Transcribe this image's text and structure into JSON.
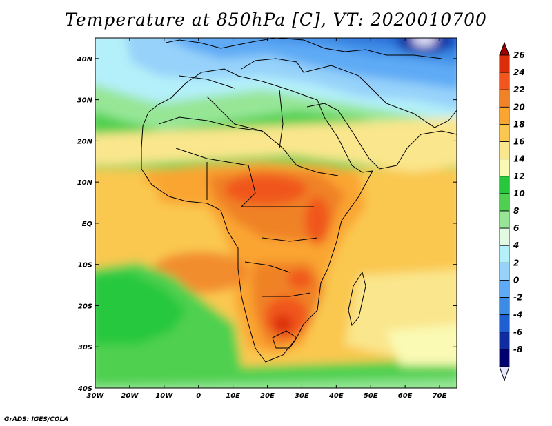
{
  "title": "Temperature at 850hPa [C], VT: 2020010700",
  "credit": "GrADS: IGES/COLA",
  "map": {
    "lon_range": [
      -30,
      75
    ],
    "lat_range": [
      -40,
      45
    ],
    "lon_ticks": [
      {
        "value": -30,
        "label": "30W"
      },
      {
        "value": -20,
        "label": "20W"
      },
      {
        "value": -10,
        "label": "10W"
      },
      {
        "value": 0,
        "label": "0"
      },
      {
        "value": 10,
        "label": "10E"
      },
      {
        "value": 20,
        "label": "20E"
      },
      {
        "value": 30,
        "label": "30E"
      },
      {
        "value": 40,
        "label": "40E"
      },
      {
        "value": 50,
        "label": "50E"
      },
      {
        "value": 60,
        "label": "60E"
      },
      {
        "value": 70,
        "label": "70E"
      }
    ],
    "lat_ticks": [
      {
        "value": 40,
        "label": "40N"
      },
      {
        "value": 30,
        "label": "30N"
      },
      {
        "value": 20,
        "label": "20N"
      },
      {
        "value": 10,
        "label": "10N"
      },
      {
        "value": 0,
        "label": "EQ"
      },
      {
        "value": -10,
        "label": "10S"
      },
      {
        "value": -20,
        "label": "20S"
      },
      {
        "value": -30,
        "label": "30S"
      },
      {
        "value": -40,
        "label": "40S"
      }
    ]
  },
  "colorbar": {
    "levels": [
      26,
      24,
      22,
      20,
      18,
      16,
      14,
      12,
      10,
      8,
      6,
      4,
      2,
      0,
      -2,
      -4,
      -6,
      -8
    ],
    "labels": [
      "26",
      "24",
      "22",
      "20",
      "18",
      "16",
      "14",
      "12",
      "10",
      "8",
      "6",
      "4",
      "2",
      "0",
      "-2",
      "-4",
      "-6",
      "-8"
    ],
    "colors": [
      "#a00000",
      "#dc2d0a",
      "#f0561e",
      "#f08228",
      "#faa532",
      "#fac850",
      "#fae68c",
      "#fafab4",
      "#28c83c",
      "#50d050",
      "#96e696",
      "#e1fae1",
      "#b4f0fa",
      "#96d2fa",
      "#5faaf5",
      "#3c8ce6",
      "#1e5fd2",
      "#0f2da0",
      "#00006e",
      "#e6e6ff"
    ]
  }
}
